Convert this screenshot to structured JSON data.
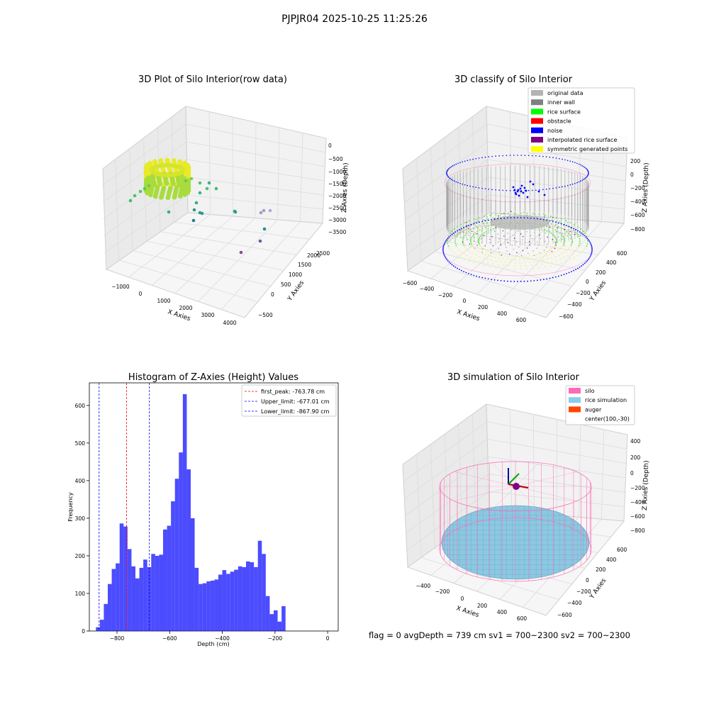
{
  "figure": {
    "suptitle": "PJPJR04 2025-10-25 11:25:26",
    "footer": "flag = 0     avgDepth = 739 cm  sv1 = 700~2300  sv2 = 700~2300"
  },
  "panels": {
    "raw": {
      "title": "3D Plot of Silo Interior(row data)",
      "xlabel": "X Axies",
      "ylabel": "Y Axies",
      "zlabel": "Z Axies (Depth)",
      "xticks": [
        "−1000",
        "0",
        "1000",
        "2000",
        "3000",
        "4000"
      ],
      "yticks": [
        "−500",
        "0",
        "500",
        "1000",
        "1500",
        "2000",
        "2500"
      ],
      "zticks": [
        "0",
        "−500",
        "−1000",
        "−1500",
        "−2000",
        "−2500",
        "−3000",
        "−3500"
      ]
    },
    "classify": {
      "title": "3D classify of Silo Interior",
      "xlabel": "X Axies",
      "ylabel": "Y Axies",
      "zlabel": "Z Axies (Depth)",
      "xticks": [
        "−600",
        "−400",
        "−200",
        "0",
        "200",
        "400",
        "600"
      ],
      "yticks": [
        "−600",
        "−400",
        "−200",
        "0",
        "200",
        "400",
        "600"
      ],
      "zticks": [
        "200",
        "0",
        "−200",
        "−400",
        "−600",
        "−800"
      ],
      "legend": [
        {
          "label": "original data",
          "color": "#b3b3b3"
        },
        {
          "label": "inner wall",
          "color": "#808080"
        },
        {
          "label": "rice surface",
          "color": "#00ff00"
        },
        {
          "label": "obstacle",
          "color": "#ff0000"
        },
        {
          "label": "noise",
          "color": "#0000ff"
        },
        {
          "label": "interpolated rice surface",
          "color": "#800080"
        },
        {
          "label": "symmetric generated points",
          "color": "#ffff00"
        }
      ]
    },
    "simulation": {
      "title": "3D simulation of Silo Interior",
      "xlabel": "X Axies",
      "ylabel": "Y Axies",
      "zlabel": "Z Axies (Depth)",
      "xticks": [
        "−400",
        "−200",
        "0",
        "200",
        "400",
        "600"
      ],
      "yticks": [
        "−600",
        "−400",
        "−200",
        "0",
        "200",
        "400",
        "600"
      ],
      "zticks": [
        "400",
        "200",
        "0",
        "−200",
        "−400",
        "−600",
        "−800"
      ],
      "legend": [
        {
          "label": "silo",
          "color": "#ff69b4"
        },
        {
          "label": "rice simulation",
          "color": "#87ceeb"
        },
        {
          "label": "auger",
          "color": "#ff4500"
        },
        {
          "label": "center(100,-30)",
          "color": ""
        }
      ]
    }
  },
  "chart_data": {
    "type": "bar",
    "title": "Histogram of Z-Axies (Height) Values",
    "xlabel": "Depth (cm)",
    "ylabel": "Frequency",
    "xlim": [
      -905,
      40
    ],
    "ylim": [
      0,
      660
    ],
    "xticks": [
      -800,
      -600,
      -400,
      -200,
      0
    ],
    "xtick_labels": [
      "−800",
      "−600",
      "−400",
      "−200",
      "0"
    ],
    "yticks": [
      0,
      100,
      200,
      300,
      400,
      500,
      600
    ],
    "bar_color": "#0000ff",
    "bins": {
      "start": -880,
      "width": 15,
      "counts": [
        10,
        30,
        72,
        125,
        165,
        180,
        286,
        278,
        218,
        172,
        140,
        168,
        190,
        170,
        205,
        200,
        203,
        270,
        280,
        345,
        405,
        475,
        630,
        430,
        300,
        168,
        125,
        127,
        132,
        134,
        137,
        150,
        162,
        152,
        158,
        163,
        172,
        170,
        185,
        183,
        170,
        240,
        205,
        93,
        45,
        55,
        25,
        66
      ]
    },
    "vlines": [
      {
        "label": "first_peak: -763.78 cm",
        "x": -763.78,
        "color": "#ff0000"
      },
      {
        "label": "Upper_limit: -677.01 cm",
        "x": -677.01,
        "color": "#0000ff"
      },
      {
        "label": "Lower_limit: -867.90 cm",
        "x": -867.9,
        "color": "#0000ff"
      }
    ],
    "legend_position": "top-right"
  }
}
